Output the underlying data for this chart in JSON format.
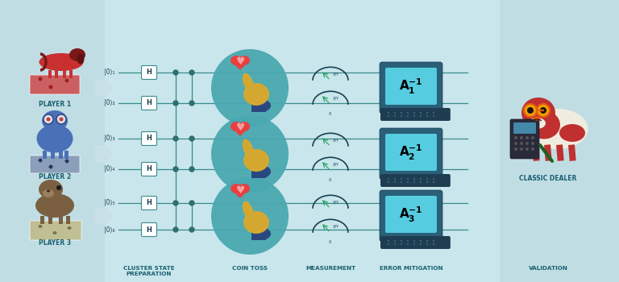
{
  "bg_color": "#c8e6ec",
  "line_color": "#3a8a8c",
  "dot_color": "#2e7070",
  "teal_circle_color": "#4aa8b0",
  "monitor_screen_color": "#55cce0",
  "monitor_body_color": "#2a5f78",
  "monitor_kbd_color": "#1e3d50",
  "label_color": "#1a6070",
  "player_label_color": "#1a6070",
  "title_labels": [
    "CLUSTER STATE\nPREPARATION",
    "COIN TOSS",
    "MEASUREMENT",
    "ERROR MITIGATION",
    "VALIDATION"
  ],
  "player_labels": [
    "PLAYER 1",
    "PLAYER 2",
    "PLAYER 3"
  ],
  "monitor_labels": [
    "$\\mathbf{A_1^{-1}}$",
    "$\\mathbf{A_2^{-1}}$",
    "$\\mathbf{A_3^{-1}}$"
  ],
  "qubit_labels": [
    "|0⟩₁",
    "|0⟩₂",
    "|0⟩₃",
    "|0⟩₄",
    "|0⟩₅",
    "|0⟩₆"
  ]
}
